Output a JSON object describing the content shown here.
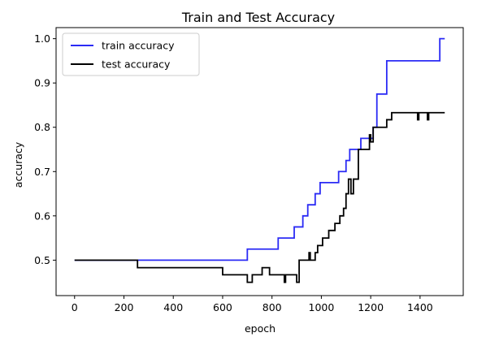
{
  "chart_data": {
    "type": "line",
    "title": "Train and Test Accuracy",
    "xlabel": "epoch",
    "ylabel": "accuracy",
    "xlim": [
      -75,
      1575
    ],
    "ylim": [
      0.42,
      1.025
    ],
    "xticks": [
      0,
      200,
      400,
      600,
      800,
      1000,
      1200,
      1400
    ],
    "yticks": [
      0.5,
      0.6,
      0.7,
      0.8,
      0.9,
      1.0
    ],
    "ytick_labels": [
      "0.5",
      "0.6",
      "0.7",
      "0.8",
      "0.9",
      "1.0"
    ],
    "grid": false,
    "legend_position": "upper-left",
    "series": [
      {
        "name": "train accuracy",
        "color": "#2b2bf5",
        "step": true,
        "points": [
          [
            0,
            0.5
          ],
          [
            700,
            0.525
          ],
          [
            825,
            0.55
          ],
          [
            890,
            0.575
          ],
          [
            925,
            0.6
          ],
          [
            945,
            0.625
          ],
          [
            975,
            0.65
          ],
          [
            995,
            0.675
          ],
          [
            1070,
            0.7
          ],
          [
            1100,
            0.725
          ],
          [
            1115,
            0.75
          ],
          [
            1160,
            0.775
          ],
          [
            1210,
            0.8
          ],
          [
            1225,
            0.875
          ],
          [
            1265,
            0.95
          ],
          [
            1480,
            1.0
          ],
          [
            1500,
            1.0
          ]
        ]
      },
      {
        "name": "test accuracy",
        "color": "#000000",
        "step": true,
        "points": [
          [
            0,
            0.5
          ],
          [
            255,
            0.483
          ],
          [
            600,
            0.467
          ],
          [
            700,
            0.45
          ],
          [
            720,
            0.467
          ],
          [
            745,
            0.467
          ],
          [
            760,
            0.483
          ],
          [
            790,
            0.467
          ],
          [
            850,
            0.45
          ],
          [
            855,
            0.467
          ],
          [
            900,
            0.45
          ],
          [
            910,
            0.5
          ],
          [
            950,
            0.517
          ],
          [
            955,
            0.5
          ],
          [
            960,
            0.5
          ],
          [
            975,
            0.517
          ],
          [
            985,
            0.533
          ],
          [
            1005,
            0.55
          ],
          [
            1030,
            0.567
          ],
          [
            1055,
            0.583
          ],
          [
            1075,
            0.6
          ],
          [
            1090,
            0.617
          ],
          [
            1100,
            0.65
          ],
          [
            1110,
            0.683
          ],
          [
            1120,
            0.65
          ],
          [
            1130,
            0.683
          ],
          [
            1150,
            0.75
          ],
          [
            1195,
            0.783
          ],
          [
            1200,
            0.767
          ],
          [
            1210,
            0.8
          ],
          [
            1265,
            0.817
          ],
          [
            1285,
            0.833
          ],
          [
            1390,
            0.817
          ],
          [
            1395,
            0.833
          ],
          [
            1430,
            0.817
          ],
          [
            1435,
            0.833
          ],
          [
            1500,
            0.833
          ]
        ]
      }
    ]
  }
}
